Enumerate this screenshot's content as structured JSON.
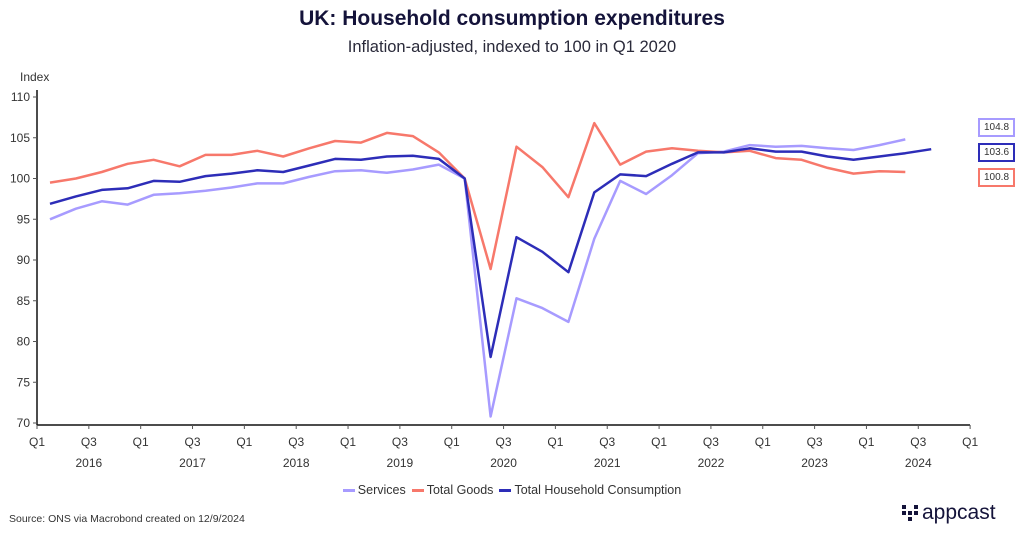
{
  "title": "UK: Household consumption expenditures",
  "subtitle": "Inflation-adjusted, indexed to 100 in Q1 2020",
  "source": "Source: ONS via Macrobond created on 12/9/2024",
  "logo_text": "appcast",
  "chart_data": {
    "type": "line",
    "title": "UK: Household consumption expenditures",
    "subtitle": "Inflation-adjusted, indexed to 100 in Q1 2020",
    "xlabel": "",
    "ylabel": "Index",
    "ylim": [
      70,
      110
    ],
    "yticks": [
      110,
      105,
      100,
      95,
      90,
      85,
      80,
      75,
      70
    ],
    "xticks": [
      {
        "q": "Q1",
        "year": ""
      },
      {
        "q": "Q3",
        "year": "2016"
      },
      {
        "q": "Q1",
        "year": ""
      },
      {
        "q": "Q3",
        "year": "2017"
      },
      {
        "q": "Q1",
        "year": ""
      },
      {
        "q": "Q3",
        "year": "2018"
      },
      {
        "q": "Q1",
        "year": ""
      },
      {
        "q": "Q3",
        "year": "2019"
      },
      {
        "q": "Q1",
        "year": ""
      },
      {
        "q": "Q3",
        "year": "2020"
      },
      {
        "q": "Q1",
        "year": ""
      },
      {
        "q": "Q3",
        "year": "2021"
      },
      {
        "q": "Q1",
        "year": ""
      },
      {
        "q": "Q3",
        "year": "2022"
      },
      {
        "q": "Q1",
        "year": ""
      },
      {
        "q": "Q3",
        "year": "2023"
      },
      {
        "q": "Q1",
        "year": ""
      },
      {
        "q": "Q3",
        "year": "2024"
      },
      {
        "q": "Q1",
        "year": ""
      }
    ],
    "x_start": "Q1 2016",
    "grid": false,
    "legend_position": "bottom",
    "series": [
      {
        "name": "Services",
        "color": "#a79bff",
        "end_label": "104.8",
        "values": [
          95.0,
          96.3,
          97.2,
          96.8,
          98.0,
          98.2,
          98.5,
          98.9,
          99.4,
          99.4,
          100.2,
          100.9,
          101.0,
          100.7,
          101.1,
          101.7,
          100.0,
          70.8,
          85.3,
          84.1,
          82.4,
          92.6,
          99.7,
          98.1,
          100.4,
          103.1,
          103.3,
          104.1,
          103.9,
          104.0,
          103.7,
          103.5,
          104.1,
          104.8
        ]
      },
      {
        "name": "Total Goods",
        "color": "#f7786b",
        "end_label": "100.8",
        "values": [
          99.5,
          100.0,
          100.8,
          101.8,
          102.3,
          101.5,
          102.9,
          102.9,
          103.4,
          102.7,
          103.7,
          104.6,
          104.4,
          105.6,
          105.2,
          103.2,
          100.0,
          88.9,
          103.9,
          101.4,
          97.7,
          106.8,
          101.7,
          103.3,
          103.7,
          103.4,
          103.2,
          103.4,
          102.5,
          102.3,
          101.3,
          100.6,
          100.9,
          100.8
        ]
      },
      {
        "name": "Total Household Consumption",
        "color": "#2d2db8",
        "end_label": "103.6",
        "values": [
          96.9,
          97.8,
          98.6,
          98.8,
          99.7,
          99.6,
          100.3,
          100.6,
          101.0,
          100.8,
          101.6,
          102.4,
          102.3,
          102.7,
          102.8,
          102.4,
          100.0,
          78.1,
          92.8,
          91.0,
          88.5,
          98.3,
          100.5,
          100.3,
          101.8,
          103.2,
          103.2,
          103.7,
          103.3,
          103.3,
          102.7,
          102.3,
          102.7,
          103.1,
          103.6
        ]
      }
    ]
  }
}
